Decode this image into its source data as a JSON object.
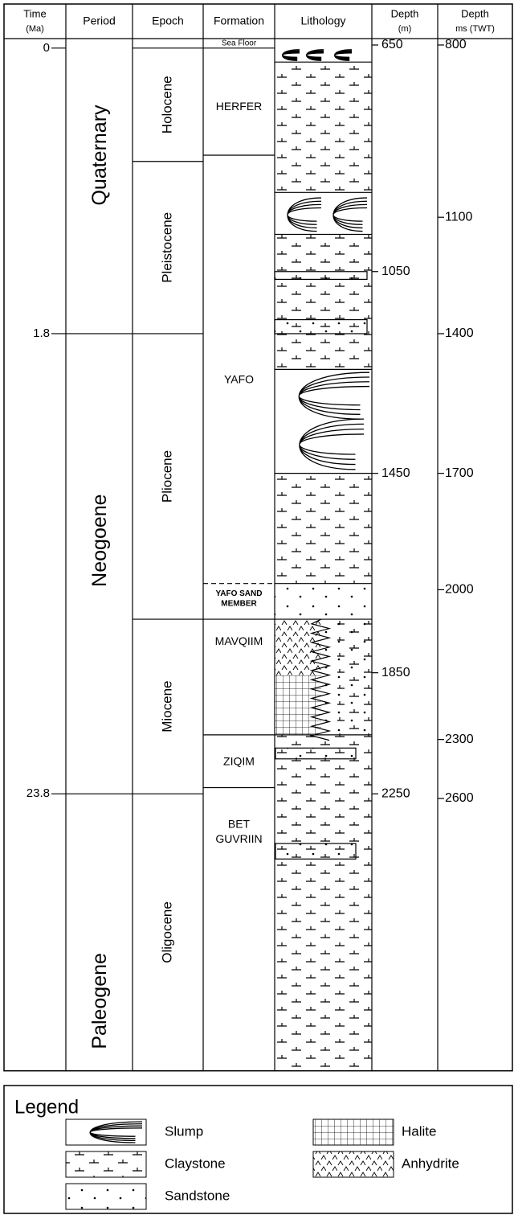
{
  "header": [
    [
      "Time",
      "(Ma)"
    ],
    [
      "Period"
    ],
    [
      "Epoch"
    ],
    [
      "Formation"
    ],
    [
      "Lithology"
    ],
    [
      "Depth",
      "(m)"
    ],
    [
      "Depth",
      "ms (TWT)"
    ]
  ],
  "time_labels": [
    "0",
    "1.8",
    "23.8"
  ],
  "periods": [
    "Quaternary",
    "Neogoene",
    "Paleogene"
  ],
  "epochs": [
    "Holocene",
    "Pleistocene",
    "Pliocene",
    "Miocene",
    "Oligocene"
  ],
  "formations": [
    [
      "Sea Floor"
    ],
    [
      "HERFER"
    ],
    [
      "YAFO"
    ],
    [
      "YAFO SAND",
      "MEMBER"
    ],
    [
      "MAVQIIM"
    ],
    [
      "ZIQIM"
    ],
    [
      "BET",
      "GUVRIIN"
    ]
  ],
  "depth_m": [
    "650",
    "1050",
    "1450",
    "1850",
    "2250"
  ],
  "depth_ms": [
    "800",
    "1100",
    "1400",
    "1700",
    "2000",
    "2300",
    "2600"
  ],
  "legend": {
    "title": "Legend",
    "items": [
      "Slump",
      "Claystone",
      "Sandstone",
      "Halite",
      "Anhydrite"
    ]
  }
}
